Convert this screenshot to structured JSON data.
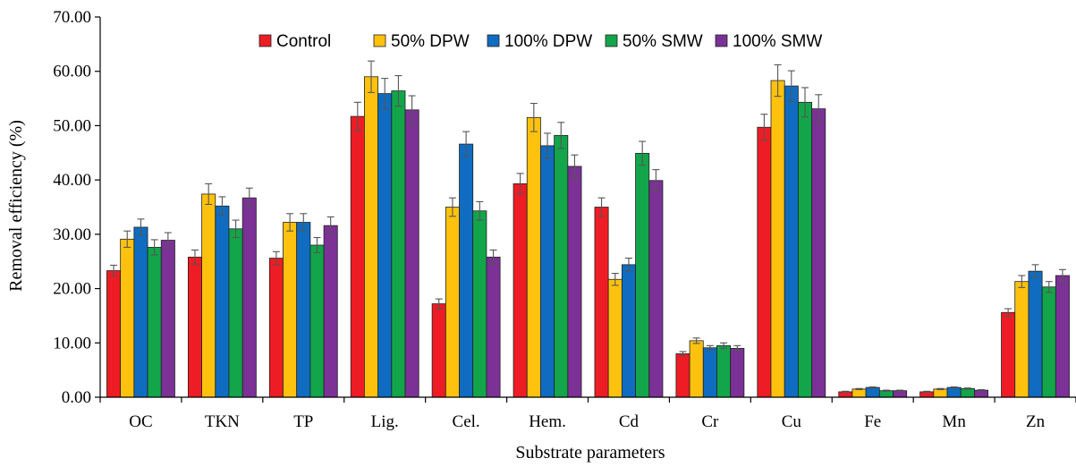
{
  "chart_data": {
    "type": "bar",
    "title": "",
    "xlabel": "Substrate parameters",
    "ylabel": "Removal efficiency (%)",
    "ylim": [
      0,
      70
    ],
    "yticks": [
      "0.00",
      "10.00",
      "20.00",
      "30.00",
      "40.00",
      "50.00",
      "60.00",
      "70.00"
    ],
    "grid": false,
    "legend_position": "top-center",
    "error_bars": true,
    "categories": [
      "OC",
      "TKN",
      "TP",
      "Lig.",
      "Cel.",
      "Hem.",
      "Cd",
      "Cr",
      "Cu",
      "Fe",
      "Mn",
      "Zn"
    ],
    "series": [
      {
        "name": "Control",
        "color": "#ee1c24",
        "values": [
          23.3,
          25.8,
          25.6,
          51.7,
          17.2,
          39.3,
          35.0,
          8.0,
          49.7,
          1.0,
          1.0,
          15.6
        ],
        "errors": [
          1.0,
          1.3,
          1.2,
          2.6,
          0.9,
          1.9,
          1.7,
          0.4,
          2.4,
          0.1,
          0.1,
          0.7
        ]
      },
      {
        "name": "50% DPW",
        "color": "#fec20e",
        "values": [
          29.1,
          37.4,
          32.2,
          59.0,
          35.0,
          51.5,
          21.7,
          10.4,
          58.3,
          1.5,
          1.5,
          21.3
        ],
        "errors": [
          1.5,
          1.9,
          1.6,
          2.9,
          1.7,
          2.6,
          1.1,
          0.5,
          2.9,
          0.1,
          0.1,
          1.1
        ]
      },
      {
        "name": "100% DPW",
        "color": "#0f6cc0",
        "values": [
          31.3,
          35.2,
          32.2,
          55.9,
          46.6,
          46.3,
          24.4,
          9.1,
          57.3,
          1.8,
          1.8,
          23.2
        ],
        "errors": [
          1.5,
          1.7,
          1.6,
          2.8,
          2.3,
          2.3,
          1.2,
          0.4,
          2.8,
          0.1,
          0.1,
          1.2
        ]
      },
      {
        "name": "50% SMW",
        "color": "#12a54a",
        "values": [
          27.6,
          31.0,
          28.0,
          56.4,
          34.3,
          48.2,
          44.9,
          9.5,
          54.3,
          1.2,
          1.6,
          20.3
        ],
        "errors": [
          1.4,
          1.6,
          1.4,
          2.8,
          1.7,
          2.4,
          2.2,
          0.5,
          2.7,
          0.1,
          0.1,
          1.0
        ]
      },
      {
        "name": "100% SMW",
        "color": "#7b3196",
        "values": [
          28.9,
          36.7,
          31.6,
          52.9,
          25.8,
          42.5,
          39.9,
          9.0,
          53.1,
          1.2,
          1.3,
          22.4
        ],
        "errors": [
          1.4,
          1.8,
          1.6,
          2.6,
          1.3,
          2.1,
          2.0,
          0.5,
          2.6,
          0.1,
          0.1,
          1.1
        ]
      }
    ]
  }
}
